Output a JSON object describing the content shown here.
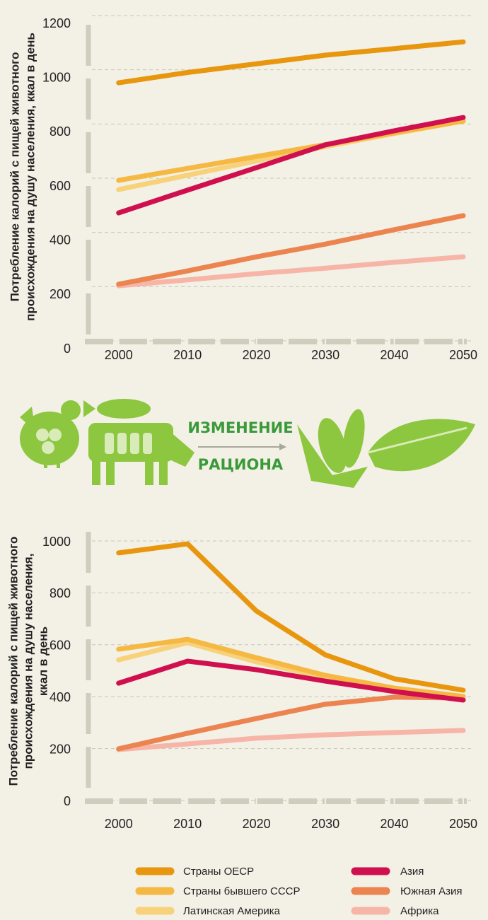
{
  "chart_data": [
    {
      "type": "line",
      "ylabel": [
        "Потребление калорий с пищей животного",
        "происхождения  на душу населения, ккал в день"
      ],
      "x": [
        2000,
        2010,
        2020,
        2030,
        2040,
        2050
      ],
      "xlim": [
        1995,
        2050
      ],
      "xticks": [
        2000,
        2010,
        2020,
        2030,
        2040,
        2050
      ],
      "ylim": [
        0,
        1200
      ],
      "yticks": [
        0,
        200,
        400,
        600,
        800,
        1000,
        1200
      ],
      "grid": true,
      "series": [
        {
          "color": "#f7b5a8",
          "values": [
            203,
            225,
            248,
            268,
            290,
            310
          ]
        },
        {
          "color": "#ec8450",
          "values": [
            209,
            258,
            310,
            357,
            410,
            462
          ]
        },
        {
          "color": "#f8d27a",
          "values": [
            558,
            611,
            664,
            717,
            765,
            811
          ]
        },
        {
          "color": "#f5b943",
          "values": [
            592,
            636,
            680,
            724,
            767,
            811
          ]
        },
        {
          "color": "#d0104e",
          "values": [
            472,
            556,
            639,
            723,
            775,
            824
          ]
        },
        {
          "color": "#e8960e",
          "values": [
            952,
            990,
            1022,
            1054,
            1078,
            1103
          ]
        }
      ]
    },
    {
      "type": "line",
      "ylabel": [
        "Потребление калорий с пищей животного",
        "происхождения  на душу населения,",
        "ккал в день"
      ],
      "x": [
        2000,
        2010,
        2020,
        2030,
        2040,
        2050
      ],
      "xlim": [
        1995,
        2050
      ],
      "xticks": [
        2000,
        2010,
        2020,
        2030,
        2040,
        2050
      ],
      "ylim": [
        0,
        1000
      ],
      "yticks": [
        0,
        200,
        400,
        600,
        800,
        1000
      ],
      "grid": true,
      "series": [
        {
          "name": "Африка",
          "color": "#f7b5a8",
          "values": [
            196,
            218,
            240,
            253,
            262,
            270
          ]
        },
        {
          "name": "Южная Азия",
          "color": "#ec8450",
          "values": [
            199,
            259,
            316,
            371,
            398,
            395
          ]
        },
        {
          "name": "Латинская Америка",
          "color": "#f8d27a",
          "values": [
            542,
            608,
            534,
            474,
            428,
            395
          ]
        },
        {
          "name": "Страны бывшего СССР",
          "color": "#f5b943",
          "values": [
            583,
            621,
            550,
            482,
            433,
            401
          ]
        },
        {
          "name": "Азия",
          "color": "#d0104e",
          "values": [
            452,
            537,
            504,
            460,
            420,
            387
          ]
        },
        {
          "name": "Страны ОЕСР",
          "color": "#e8960e",
          "values": [
            954,
            989,
            730,
            561,
            469,
            425
          ]
        }
      ]
    }
  ],
  "illustration": {
    "line1": "ИЗМЕНЕНИЕ",
    "line2": "РАЦИОНА"
  }
}
